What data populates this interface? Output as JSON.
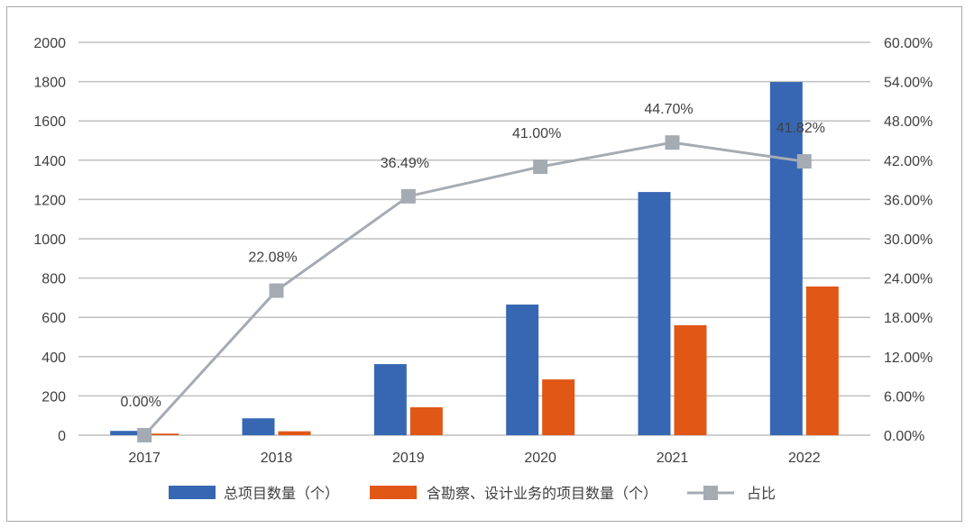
{
  "chart_data": {
    "type": "bar",
    "title": "",
    "xlabel": "",
    "ylabel": "",
    "y2label": "",
    "categories": [
      "2017",
      "2018",
      "2019",
      "2020",
      "2021",
      "2022"
    ],
    "series": [
      {
        "name": "总项目数量（个）",
        "type": "bar",
        "axis": "left",
        "color": "#3767b3",
        "values": [
          22,
          86,
          362,
          665,
          1238,
          1798
        ]
      },
      {
        "name": "含勘察、设计业务的项目数量（个）",
        "type": "bar",
        "axis": "left",
        "color": "#e05716",
        "values": [
          8,
          20,
          142,
          284,
          560,
          757
        ]
      },
      {
        "name": "占比",
        "type": "line",
        "axis": "right",
        "color": "#a5abb3",
        "marker": "square",
        "values": [
          0.0,
          22.08,
          36.49,
          41.0,
          44.7,
          41.82
        ],
        "data_labels": [
          "0.00%",
          "22.08%",
          "36.49%",
          "41.00%",
          "44.70%",
          "41.82%"
        ]
      }
    ],
    "ylim": [
      0,
      2000
    ],
    "y_ticks": [
      "0",
      "200",
      "400",
      "600",
      "800",
      "1000",
      "1200",
      "1400",
      "1600",
      "1800",
      "2000"
    ],
    "y2lim": [
      0,
      60
    ],
    "y2_ticks": [
      "0.00%",
      "6.00%",
      "12.00%",
      "18.00%",
      "24.00%",
      "30.00%",
      "36.00%",
      "42.00%",
      "48.00%",
      "54.00%",
      "60.00%"
    ],
    "grid": true,
    "legend_position": "bottom"
  },
  "legend": {
    "items": [
      {
        "label": "总项目数量（个）",
        "color": "#3767b3",
        "kind": "bar"
      },
      {
        "label": "含勘察、设计业务的项目数量（个）",
        "color": "#e05716",
        "kind": "bar"
      },
      {
        "label": "占比",
        "color": "#a5abb3",
        "kind": "line-square"
      }
    ]
  }
}
